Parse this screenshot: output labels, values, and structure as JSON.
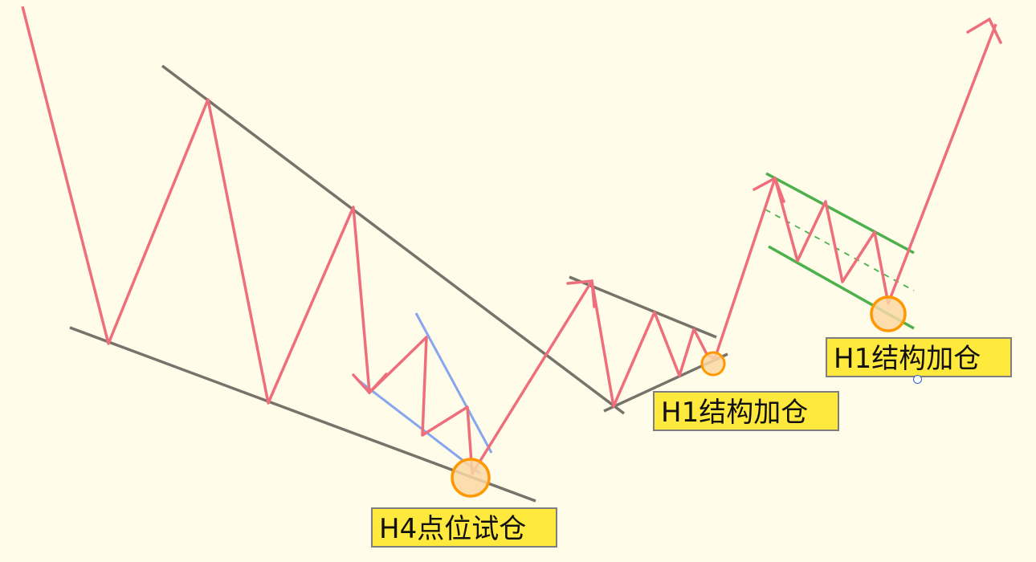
{
  "labels": {
    "h4_entry": "H4点位试仓",
    "h1_add_first": "H1结构加仓",
    "h1_add_second": "H1结构加仓"
  },
  "colors": {
    "background": "#fffcea",
    "price_path": "#ee6f7b",
    "trendline": "#77736b",
    "wedge_line": "#86a6ee",
    "channel_line": "#4cb14c",
    "channel_midline": "#4cb14c",
    "marker_stroke": "#ff9800",
    "marker_fill": "#fad7a3",
    "label_fill": "#ffe93c",
    "label_border": "#7e7e7e"
  },
  "icons": {
    "path_arrow": "arrowhead-icon",
    "entry_marker": "circle-marker-icon",
    "selection_handle": "circle-handle-icon"
  }
}
